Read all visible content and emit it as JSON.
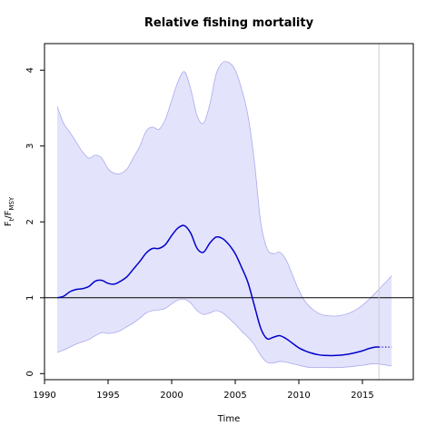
{
  "chart_data": {
    "type": "area",
    "title": "Relative fishing mortality",
    "xlabel": "Time",
    "ylabel_main": "F",
    "ylabel_sub1": "t",
    "ylabel_mid": "/F",
    "ylabel_sub2": "MSY",
    "xlim": [
      1990,
      2019
    ],
    "ylim": [
      -0.08,
      4.35
    ],
    "xticks": [
      "1990",
      "1995",
      "2000",
      "2005",
      "2010",
      "2015"
    ],
    "yticks": [
      "0",
      "1",
      "2",
      "3",
      "4"
    ],
    "reference_line": 1,
    "vertical_line": 2016.3,
    "grid": false,
    "colors": {
      "line": "#0000cc",
      "band_fill": "#e3e3fb",
      "band_edge": "#aaaaee",
      "reference": "#000000",
      "vertical": "#cccccc"
    },
    "series": [
      {
        "x": [
          1991.0,
          1991.5,
          1992.0,
          1992.5,
          1993.0,
          1993.5,
          1994.0,
          1994.5,
          1995.0,
          1995.5,
          1996.0,
          1996.5,
          1997.0,
          1997.5,
          1998.0,
          1998.5,
          1999.0,
          1999.5,
          2000.0,
          2000.5,
          2001.0,
          2001.5,
          2002.0,
          2002.5,
          2003.0,
          2003.5,
          2004.0,
          2004.5,
          2005.0,
          2005.5,
          2006.0,
          2006.5,
          2007.0,
          2007.5,
          2008.0,
          2008.5,
          2009.0,
          2009.5,
          2010.0,
          2010.5,
          2011.0,
          2011.5,
          2012.0,
          2013.0,
          2014.0,
          2015.0,
          2015.5,
          2016.0,
          2016.3
        ],
        "values": [
          1.0,
          1.02,
          1.08,
          1.11,
          1.12,
          1.15,
          1.22,
          1.23,
          1.19,
          1.18,
          1.22,
          1.28,
          1.38,
          1.48,
          1.59,
          1.65,
          1.65,
          1.7,
          1.82,
          1.92,
          1.95,
          1.85,
          1.65,
          1.6,
          1.72,
          1.8,
          1.78,
          1.7,
          1.58,
          1.4,
          1.2,
          0.9,
          0.6,
          0.46,
          0.48,
          0.5,
          0.46,
          0.4,
          0.34,
          0.3,
          0.27,
          0.25,
          0.24,
          0.24,
          0.26,
          0.3,
          0.33,
          0.35,
          0.35
        ]
      },
      {
        "x": [
          2016.3,
          2017.3
        ],
        "values": [
          0.35,
          0.35
        ],
        "style": "dotted"
      }
    ],
    "band": {
      "x": [
        1991.0,
        1991.5,
        1992.0,
        1992.5,
        1993.0,
        1993.5,
        1994.0,
        1994.5,
        1995.0,
        1995.5,
        1996.0,
        1996.5,
        1997.0,
        1997.5,
        1998.0,
        1998.5,
        1999.0,
        1999.5,
        2000.0,
        2000.5,
        2001.0,
        2001.5,
        2002.0,
        2002.5,
        2003.0,
        2003.5,
        2004.0,
        2004.5,
        2005.0,
        2005.5,
        2006.0,
        2006.5,
        2007.0,
        2007.5,
        2008.0,
        2008.5,
        2009.0,
        2009.5,
        2010.0,
        2010.5,
        2011.0,
        2011.5,
        2012.0,
        2013.0,
        2014.0,
        2015.0,
        2016.0,
        2017.3
      ],
      "upper": [
        3.52,
        3.3,
        3.18,
        3.05,
        2.92,
        2.84,
        2.88,
        2.84,
        2.7,
        2.64,
        2.64,
        2.7,
        2.85,
        3.0,
        3.2,
        3.25,
        3.22,
        3.35,
        3.6,
        3.85,
        3.98,
        3.75,
        3.4,
        3.3,
        3.55,
        3.95,
        4.1,
        4.1,
        4.0,
        3.75,
        3.4,
        2.8,
        2.0,
        1.65,
        1.58,
        1.6,
        1.5,
        1.3,
        1.1,
        0.95,
        0.86,
        0.8,
        0.77,
        0.76,
        0.8,
        0.9,
        1.06,
        1.29
      ],
      "lower": [
        0.28,
        0.31,
        0.35,
        0.39,
        0.42,
        0.45,
        0.5,
        0.54,
        0.53,
        0.54,
        0.57,
        0.62,
        0.67,
        0.73,
        0.8,
        0.83,
        0.84,
        0.86,
        0.92,
        0.97,
        0.98,
        0.93,
        0.83,
        0.78,
        0.8,
        0.83,
        0.8,
        0.73,
        0.65,
        0.56,
        0.48,
        0.38,
        0.24,
        0.15,
        0.14,
        0.16,
        0.15,
        0.13,
        0.11,
        0.09,
        0.08,
        0.08,
        0.08,
        0.08,
        0.09,
        0.11,
        0.13,
        0.1
      ]
    }
  }
}
